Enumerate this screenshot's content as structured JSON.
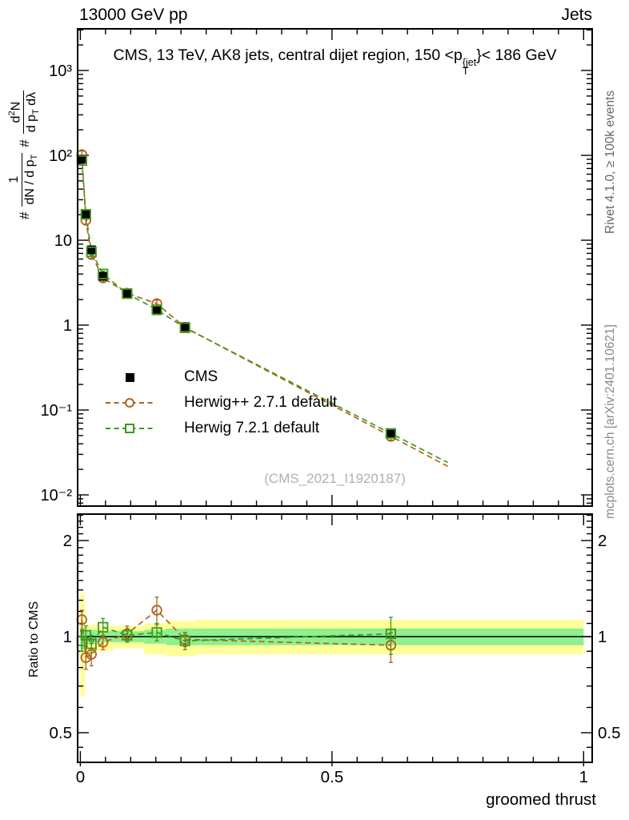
{
  "header": {
    "left": "13000 GeV pp",
    "right": "Jets"
  },
  "title": {
    "prefix": "CMS, 13 TeV, AK8 jets, central dijet region, 150 <p",
    "sup": "{jet",
    "sub": "T",
    "suffix": "}< 186 GeV"
  },
  "yaxis_title": {
    "hash1": "#",
    "f1_num": "1",
    "f1_den": "dN / d p",
    "sub_T": "T",
    "hash2": "#",
    "f2_num_a": "d",
    "f2_sup": "2",
    "f2_num_b": "N",
    "f2_den_a": "d p",
    "f2_den_b": " dλ"
  },
  "ratio_axis_label": "Ratio to CMS",
  "right_margin": {
    "top": "Rivet 4.1.0, ≥ 100k events",
    "bottom": "mcplots.cern.ch [arXiv:2401.10621]"
  },
  "watermark": "(CMS_2021_I1920187)",
  "legend": [
    {
      "label": "CMS"
    },
    {
      "label": "Herwig++ 2.7.1 default"
    },
    {
      "label": "Herwig 7.2.1 default"
    }
  ],
  "colors": {
    "cms": "#000000",
    "herwigpp": "#b2631e",
    "herwig7": "#3e9a1a",
    "band_yellow": "#ffff99",
    "band_green": "#8ef08e",
    "watermark": "#b0b0b0",
    "rivet_text": "#666666",
    "mcplots_text": "#888888"
  },
  "chart_data": {
    "type": "line",
    "title": "CMS, 13 TeV, AK8 jets, central dijet region, 150 <p_T^{jet}}< 186 GeV",
    "xlabel": "groomed thrust",
    "ylabel": "# 1/(dN/dp_T) # d^2N/(dp_T dλ)",
    "ylabel_ratio": "Ratio to CMS",
    "xlim": [
      0,
      1
    ],
    "main_ylog_lim": [
      -2.11,
      3.45
    ],
    "ratio_ylim": [
      0.405,
      2.42
    ],
    "grid": false,
    "legend_position": "upper-left-inside",
    "x_ticks": {
      "major": [
        0,
        0.5,
        1
      ],
      "labels": [
        "0",
        "0.5",
        "1"
      ],
      "minor_step": 0.05
    },
    "main_y_ticks": {
      "values": [
        1000,
        100,
        10,
        1,
        0.1,
        0.01
      ],
      "labels": [
        "10³",
        "10²",
        "10",
        "1",
        "10⁻¹",
        "10⁻²"
      ]
    },
    "ratio_y_ticks": {
      "values": [
        2,
        1,
        0.5
      ],
      "labels": [
        "2",
        "1",
        "0.5"
      ],
      "minor_step": 0.1
    },
    "x": [
      0.003,
      0.011,
      0.022,
      0.045,
      0.093,
      0.152,
      0.208,
      0.617
    ],
    "bin_edges": [
      0,
      0.0095,
      0.0207,
      0.0334,
      0.065,
      0.127,
      0.17,
      0.23,
      1.0
    ],
    "series": [
      {
        "name": "CMS",
        "marker": "filled-square",
        "values": [
          90,
          20,
          7.7,
          3.76,
          2.33,
          1.48,
          0.96,
          0.052
        ],
        "ratio": [
          1,
          1,
          1,
          1,
          1,
          1,
          1,
          1
        ],
        "err_frac": 0.04
      },
      {
        "name": "Herwig++ 2.7.1 default",
        "marker": "open-circle",
        "values": [
          102,
          17.2,
          6.8,
          3.6,
          2.38,
          1.79,
          0.94,
          0.049
        ],
        "ratio": [
          1.13,
          0.86,
          0.88,
          0.96,
          1.02,
          1.21,
          0.98,
          0.94
        ],
        "ratio_err": [
          [
            1.05,
            1.21
          ],
          [
            0.79,
            0.93
          ],
          [
            0.81,
            0.95
          ],
          [
            0.91,
            1.01
          ],
          [
            0.97,
            1.08
          ],
          [
            1.09,
            1.33
          ],
          [
            0.93,
            1.03
          ],
          [
            0.83,
            1.03
          ]
        ],
        "err_frac": 0.1
      },
      {
        "name": "Herwig 7.2.1 default",
        "marker": "open-square",
        "values": [
          87,
          20.2,
          7.3,
          4.0,
          2.35,
          1.52,
          0.93,
          0.053
        ],
        "ratio": [
          0.97,
          1.01,
          0.95,
          1.07,
          1.01,
          1.03,
          0.97,
          1.02
        ],
        "ratio_err": [
          [
            0.9,
            1.04
          ],
          [
            0.95,
            1.08
          ],
          [
            0.89,
            1.01
          ],
          [
            1.0,
            1.14
          ],
          [
            0.96,
            1.06
          ],
          [
            0.97,
            1.1
          ],
          [
            0.91,
            1.03
          ],
          [
            0.88,
            1.15
          ]
        ],
        "err_frac": 0.08
      }
    ],
    "bands": [
      {
        "x0": 0,
        "x1": 0.0095,
        "yellow": [
          0.65,
          1.37
        ],
        "green": [
          0.91,
          1.07
        ]
      },
      {
        "x0": 0.0095,
        "x1": 0.0207,
        "yellow": [
          0.88,
          1.09
        ],
        "green": [
          0.95,
          1.05
        ]
      },
      {
        "x0": 0.0207,
        "x1": 0.0334,
        "yellow": [
          0.88,
          1.09
        ],
        "green": [
          0.95,
          1.05
        ]
      },
      {
        "x0": 0.0334,
        "x1": 0.065,
        "yellow": [
          0.9,
          1.08
        ],
        "green": [
          0.96,
          1.04
        ]
      },
      {
        "x0": 0.065,
        "x1": 0.127,
        "yellow": [
          0.92,
          1.08
        ],
        "green": [
          0.96,
          1.04
        ]
      },
      {
        "x0": 0.127,
        "x1": 0.17,
        "yellow": [
          0.88,
          1.1
        ],
        "green": [
          0.95,
          1.05
        ]
      },
      {
        "x0": 0.17,
        "x1": 0.23,
        "yellow": [
          0.87,
          1.12
        ],
        "green": [
          0.94,
          1.06
        ]
      },
      {
        "x0": 0.23,
        "x1": 1.0,
        "yellow": [
          0.88,
          1.13
        ],
        "green": [
          0.94,
          1.06
        ]
      }
    ],
    "ratio_reference": 1,
    "line_extend_x": 0.73
  }
}
